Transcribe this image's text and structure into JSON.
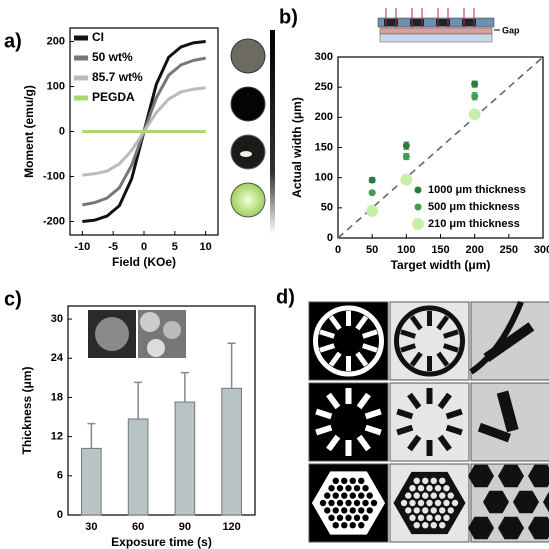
{
  "chart_data": [
    {
      "type": "line",
      "panel_label": "a)",
      "xlabel": "Field (KOe)",
      "ylabel": "Moment (emu/g)",
      "x": [
        -10,
        -8,
        -6,
        -4,
        -2,
        0,
        2,
        4,
        6,
        8,
        10
      ],
      "series": [
        {
          "name": "CI",
          "color": "#111111",
          "values": [
            -200,
            -197,
            -188,
            -165,
            -105,
            0,
            105,
            165,
            188,
            197,
            200
          ]
        },
        {
          "name": "50 wt%",
          "color": "#777777",
          "values": [
            -163,
            -158,
            -148,
            -125,
            -75,
            0,
            75,
            125,
            148,
            158,
            163
          ]
        },
        {
          "name": "85.7 wt%",
          "color": "#bbbbbb",
          "values": [
            -97,
            -94,
            -88,
            -72,
            -42,
            0,
            42,
            72,
            88,
            94,
            97
          ]
        },
        {
          "name": "PEGDA",
          "color": "#a8d86e",
          "values": [
            0,
            0,
            0,
            0,
            0,
            0,
            0,
            0,
            0,
            0,
            0
          ]
        }
      ],
      "xlim": [
        -12,
        12
      ],
      "xticks": [
        -10,
        -5,
        0,
        5,
        10
      ],
      "ylim": [
        -230,
        230
      ],
      "yticks": [
        -200,
        -100,
        0,
        100,
        200
      ],
      "legend": "top-left"
    },
    {
      "type": "scatter",
      "panel_label": "b)",
      "xlabel": "Target width (μm)",
      "ylabel": "Actual width (μm)",
      "inset_label": "Gap",
      "x": [
        50,
        100,
        200
      ],
      "series": [
        {
          "name": "1000 μm thickness",
          "color": "#2d7a3a",
          "values": [
            96,
            153,
            255
          ],
          "errors": [
            4,
            6,
            5
          ]
        },
        {
          "name": "500 μm thickness",
          "color": "#3e9e4f",
          "values": [
            75,
            135,
            235
          ],
          "errors": [
            3,
            5,
            6
          ]
        },
        {
          "name": "210 μm thickness",
          "color": "#c6f0a8",
          "values": [
            45,
            97,
            205
          ],
          "errors": [
            3,
            4,
            4
          ]
        }
      ],
      "xlim": [
        0,
        300
      ],
      "xticks": [
        0,
        50,
        100,
        150,
        200,
        250,
        300
      ],
      "ylim": [
        0,
        300
      ],
      "yticks": [
        0,
        50,
        100,
        150,
        200,
        250,
        300
      ],
      "identity_line": true,
      "legend": "bottom-right"
    },
    {
      "type": "bar",
      "panel_label": "c)",
      "xlabel": "Exposure time (s)",
      "ylabel": "Thickness (μm)",
      "categories": [
        "30",
        "60",
        "90",
        "120"
      ],
      "values": [
        10.2,
        14.7,
        17.3,
        19.4
      ],
      "errors": [
        3.8,
        5.6,
        4.5,
        6.9
      ],
      "color": "#b8c4c4",
      "ylim": [
        0,
        32
      ],
      "yticks": [
        0,
        6,
        12,
        18,
        24,
        30
      ]
    }
  ],
  "panel_d": {
    "label": "d)"
  }
}
